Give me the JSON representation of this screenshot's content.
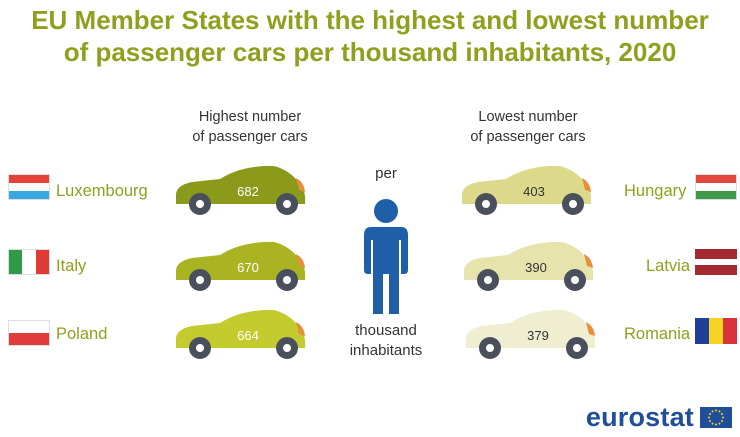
{
  "title_line1": "EU Member States with the highest and lowest number",
  "title_line2": "of passenger cars per thousand inhabitants, 2020",
  "highest": {
    "heading_line1": "Highest number",
    "heading_line2": "of passenger cars",
    "items": [
      {
        "country": "Luxembourg",
        "value": "682",
        "color": "#8c9a1c"
      },
      {
        "country": "Italy",
        "value": "670",
        "color": "#aab422"
      },
      {
        "country": "Poland",
        "value": "664",
        "color": "#c4cb2e"
      }
    ]
  },
  "lowest": {
    "heading_line1": "Lowest number",
    "heading_line2": "of passenger cars",
    "items": [
      {
        "country": "Hungary",
        "value": "403",
        "color": "#ddd98a"
      },
      {
        "country": "Latvia",
        "value": "390",
        "color": "#e6e3ad"
      },
      {
        "country": "Romania",
        "value": "379",
        "color": "#efeed0"
      }
    ]
  },
  "middle": {
    "per": "per",
    "thousand": "thousand",
    "inhabitants": "inhabitants",
    "person_color": "#1f5fa8"
  },
  "brand": "eurostat",
  "icons": {
    "car": "car-icon",
    "person": "person-icon",
    "eu_flag": "eu-flag-icon"
  }
}
